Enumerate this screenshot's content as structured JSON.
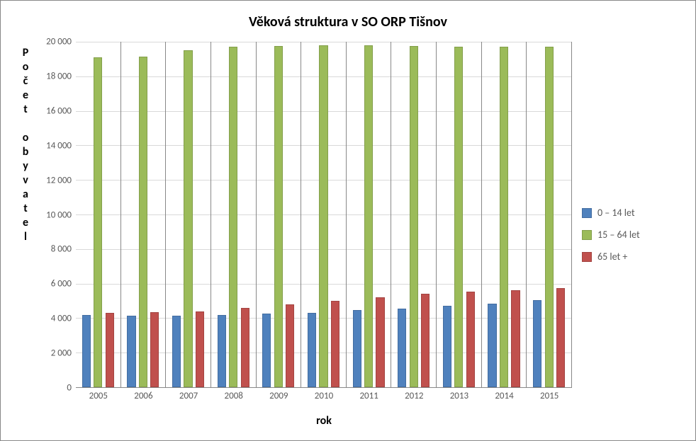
{
  "chart": {
    "type": "bar-grouped",
    "title": "Věková struktura v SO ORP Tišnov",
    "title_fontsize": 20,
    "title_fontweight": "bold",
    "title_color": "#000000",
    "x_title": "rok",
    "y_title": "Počet obyvatel",
    "axis_title_fontsize": 16,
    "tick_fontsize": 13,
    "tick_color": "#595959",
    "background_color": "#ffffff",
    "plot_background": "#ffffff",
    "grid_color": "#d9d9d9",
    "axis_line_color": "#888888",
    "border_color": "#888888",
    "ylim": [
      0,
      20000
    ],
    "ytick_step": 2000,
    "ytick_labels": [
      "0",
      "2 000",
      "4 000",
      "6 000",
      "8 000",
      "10 000",
      "12 000",
      "14 000",
      "16 000",
      "18 000",
      "20 000"
    ],
    "categories": [
      "2005",
      "2006",
      "2007",
      "2008",
      "2009",
      "2010",
      "2011",
      "2012",
      "2013",
      "2014",
      "2015"
    ],
    "series": [
      {
        "name": "0 – 14 let",
        "color": "#4f81bd",
        "values": [
          4200,
          4150,
          4150,
          4200,
          4250,
          4300,
          4450,
          4550,
          4700,
          4850,
          5050
        ]
      },
      {
        "name": "15 – 64 let",
        "color": "#9bbb59",
        "values": [
          19100,
          19150,
          19500,
          19700,
          19750,
          19800,
          19800,
          19750,
          19700,
          19700,
          19700
        ]
      },
      {
        "name": "65 let +",
        "color": "#c0504d",
        "values": [
          4300,
          4350,
          4400,
          4600,
          4800,
          5000,
          5200,
          5400,
          5550,
          5600,
          5750
        ]
      }
    ],
    "bar_group_width_pct": 72,
    "legend_position": "right"
  }
}
